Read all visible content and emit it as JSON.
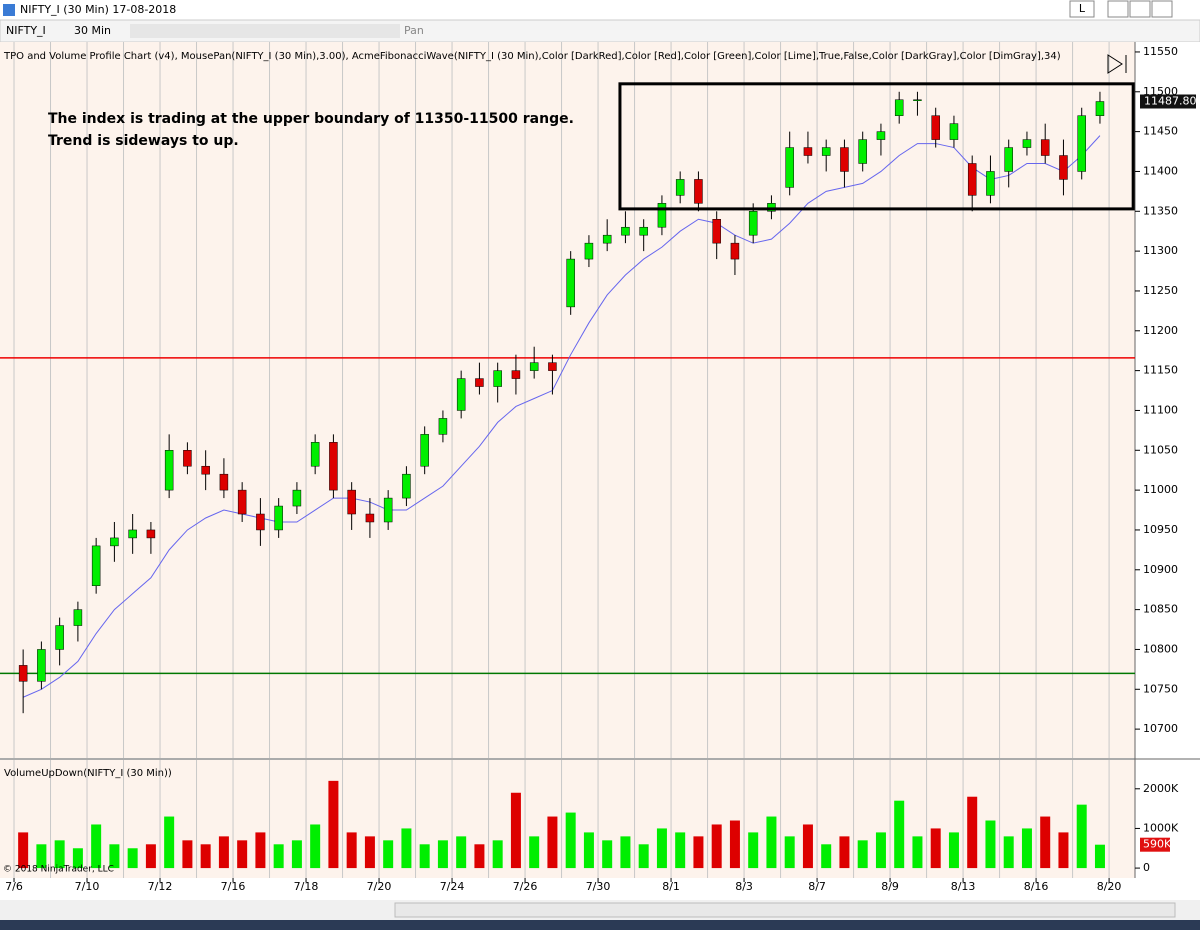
{
  "window": {
    "title": "NIFTY_I (30 Min)  17-08-2018",
    "button": "L"
  },
  "toolbar": {
    "instrument": "NIFTY_I",
    "interval": "30 Min",
    "pan": "Pan"
  },
  "copyright": "© 2018 NinjaTrader, LLC",
  "chart_data": [
    {
      "type": "candlestick",
      "indicator_label": "TPO and Volume Profile Chart (v4), MousePan(NIFTY_I (30 Min),3.00), AcmeFibonacciWave(NIFTY_I (30 Min),Color [DarkRed],Color [Red],Color [Green],Color [Lime],True,False,Color [DarkGray],Color [DimGray],34)",
      "annotation": [
        "The index is trading at the upper boundary of 11350-11500 range.",
        "Trend is sideways to up."
      ],
      "up_color": "#00ee00",
      "down_color": "#dd0000",
      "x": [
        0.25,
        0.75,
        1.25,
        1.75,
        2.25,
        2.75,
        3.25,
        3.75,
        4.25,
        4.75,
        5.25,
        5.75,
        6.25,
        6.75,
        7.25,
        7.75,
        8.25,
        8.75,
        9.25,
        9.75,
        10.25,
        10.75,
        11.25,
        11.75,
        12.25,
        12.75,
        13.25,
        13.75,
        14.25,
        14.75,
        15.25,
        15.75,
        16.25,
        16.75,
        17.25,
        17.75,
        18.25,
        18.75,
        19.25,
        19.75,
        20.25,
        20.75,
        21.25,
        21.75,
        22.25,
        22.75,
        23.25,
        23.75,
        24.25,
        24.75,
        25.25,
        25.75,
        26.25,
        26.75,
        27.25,
        27.75,
        28.25,
        28.75,
        29.25,
        29.75
      ],
      "open": [
        10780,
        10760,
        10800,
        10830,
        10880,
        10930,
        10940,
        10950,
        11000,
        11050,
        11030,
        11020,
        11000,
        10970,
        10950,
        10980,
        11030,
        11060,
        11000,
        10970,
        10960,
        10990,
        11030,
        11070,
        11100,
        11140,
        11130,
        11150,
        11150,
        11160,
        11230,
        11290,
        11310,
        11320,
        11320,
        11330,
        11370,
        11390,
        11340,
        11310,
        11320,
        11350,
        11380,
        11430,
        11420,
        11430,
        11410,
        11440,
        11470,
        11490,
        11470,
        11440,
        11410,
        11370,
        11400,
        11430,
        11440,
        11420,
        11400,
        11470
      ],
      "high": [
        10800,
        10810,
        10840,
        10860,
        10940,
        10960,
        10970,
        10960,
        11070,
        11060,
        11050,
        11040,
        11010,
        10990,
        10990,
        11010,
        11070,
        11070,
        11010,
        10990,
        11000,
        11030,
        11080,
        11100,
        11150,
        11160,
        11160,
        11170,
        11180,
        11170,
        11300,
        11320,
        11340,
        11350,
        11340,
        11370,
        11400,
        11400,
        11350,
        11320,
        11360,
        11370,
        11450,
        11450,
        11440,
        11440,
        11450,
        11460,
        11500,
        11500,
        11480,
        11470,
        11420,
        11420,
        11440,
        11450,
        11460,
        11440,
        11480,
        11500
      ],
      "low": [
        10720,
        10750,
        10780,
        10810,
        10870,
        10910,
        10920,
        10920,
        10990,
        11020,
        11000,
        10990,
        10960,
        10930,
        10940,
        10970,
        11020,
        10990,
        10950,
        10940,
        10950,
        10980,
        11020,
        11060,
        11090,
        11120,
        11110,
        11120,
        11140,
        11120,
        11220,
        11280,
        11300,
        11310,
        11300,
        11320,
        11360,
        11350,
        11290,
        11270,
        11310,
        11340,
        11370,
        11410,
        11400,
        11380,
        11400,
        11420,
        11460,
        11470,
        11430,
        11430,
        11350,
        11360,
        11380,
        11420,
        11410,
        11370,
        11390,
        11460
      ],
      "close": [
        10760,
        10800,
        10830,
        10850,
        10930,
        10940,
        10950,
        10940,
        11050,
        11030,
        11020,
        11000,
        10970,
        10950,
        10980,
        11000,
        11060,
        11000,
        10970,
        10960,
        10990,
        11020,
        11070,
        11090,
        11140,
        11130,
        11150,
        11140,
        11160,
        11150,
        11290,
        11310,
        11320,
        11330,
        11330,
        11360,
        11390,
        11360,
        11310,
        11290,
        11350,
        11360,
        11430,
        11420,
        11430,
        11400,
        11440,
        11450,
        11490,
        11490,
        11440,
        11460,
        11370,
        11400,
        11430,
        11440,
        11420,
        11390,
        11470,
        11487.8
      ],
      "last_label": "11487.80",
      "wave": {
        "color": "#6666ee",
        "values": [
          10740,
          10750,
          10765,
          10785,
          10820,
          10850,
          10870,
          10890,
          10925,
          10950,
          10965,
          10975,
          10970,
          10965,
          10960,
          10960,
          10975,
          10990,
          10990,
          10985,
          10975,
          10975,
          10990,
          11005,
          11030,
          11055,
          11085,
          11105,
          11115,
          11125,
          11170,
          11210,
          11245,
          11270,
          11290,
          11305,
          11325,
          11340,
          11335,
          11320,
          11310,
          11315,
          11335,
          11360,
          11375,
          11380,
          11385,
          11400,
          11420,
          11435,
          11435,
          11430,
          11405,
          11390,
          11395,
          11410,
          11410,
          11400,
          11420,
          11445
        ]
      },
      "hlines": [
        {
          "value": 11166,
          "color": "#ee0000"
        },
        {
          "value": 10770,
          "color": "#007700"
        }
      ],
      "box": {
        "x": [
          16.6,
          30.66
        ],
        "y": [
          11353,
          11510
        ]
      },
      "xlim": [
        -0.384,
        30.71
      ],
      "xgrid": [
        0,
        1,
        2,
        3,
        4,
        5,
        6,
        7,
        8,
        9,
        10,
        11,
        12,
        13,
        14,
        15,
        16,
        17,
        18,
        19,
        20,
        21,
        22,
        23,
        24,
        25,
        26,
        27,
        28,
        29,
        30
      ],
      "xticks": [
        {
          "value": 0,
          "label": "7/6"
        },
        {
          "value": 2,
          "label": "7/10"
        },
        {
          "value": 4,
          "label": "7/12"
        },
        {
          "value": 6,
          "label": "7/16"
        },
        {
          "value": 8,
          "label": "7/18"
        },
        {
          "value": 10,
          "label": "7/20"
        },
        {
          "value": 12,
          "label": "7/24"
        },
        {
          "value": 14,
          "label": "7/26"
        },
        {
          "value": 16,
          "label": "7/30"
        },
        {
          "value": 18,
          "label": "8/1"
        },
        {
          "value": 20,
          "label": "8/3"
        },
        {
          "value": 22,
          "label": "8/7"
        },
        {
          "value": 24,
          "label": "8/9"
        },
        {
          "value": 26,
          "label": "8/13"
        },
        {
          "value": 28,
          "label": "8/16"
        },
        {
          "value": 30,
          "label": "8/20"
        }
      ],
      "ylim": [
        10665,
        11565
      ],
      "yticks": [
        11550,
        11500,
        11450,
        11400,
        11350,
        11300,
        11250,
        11200,
        11150,
        11100,
        11050,
        11000,
        10950,
        10900,
        10850,
        10800,
        10750,
        10700
      ]
    },
    {
      "type": "bar",
      "title": "VolumeUpDown(NIFTY_I (30 Min))",
      "values": [
        900000,
        600000,
        700000,
        500000,
        1100000,
        600000,
        500000,
        600000,
        1300000,
        700000,
        600000,
        800000,
        700000,
        900000,
        600000,
        700000,
        1100000,
        2200000,
        900000,
        800000,
        700000,
        1000000,
        600000,
        700000,
        800000,
        600000,
        700000,
        1900000,
        800000,
        1300000,
        1400000,
        900000,
        700000,
        800000,
        600000,
        1000000,
        900000,
        800000,
        1100000,
        1200000,
        900000,
        1300000,
        800000,
        1100000,
        600000,
        800000,
        700000,
        900000,
        1700000,
        800000,
        1000000,
        900000,
        1800000,
        1200000,
        800000,
        1000000,
        1300000,
        900000,
        1600000,
        590000
      ],
      "last_label": "590K",
      "ylim": [
        -250000,
        2600000
      ],
      "yticks": [
        {
          "value": 2000000,
          "label": "2000K"
        },
        {
          "value": 1000000,
          "label": "1000K"
        },
        0
      ]
    }
  ]
}
